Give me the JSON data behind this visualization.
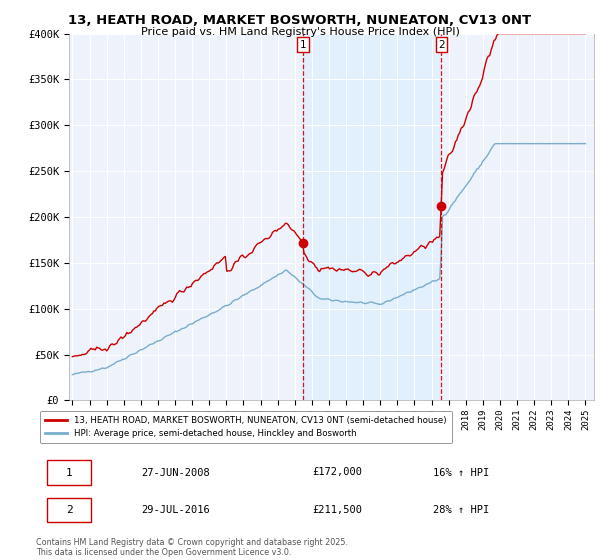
{
  "title": "13, HEATH ROAD, MARKET BOSWORTH, NUNEATON, CV13 0NT",
  "subtitle": "Price paid vs. HM Land Registry's House Price Index (HPI)",
  "ylabel_ticks": [
    "£0",
    "£50K",
    "£100K",
    "£150K",
    "£200K",
    "£250K",
    "£300K",
    "£350K",
    "£400K"
  ],
  "ytick_values": [
    0,
    50000,
    100000,
    150000,
    200000,
    250000,
    300000,
    350000,
    400000
  ],
  "ylim": [
    0,
    400000
  ],
  "red_color": "#cc0000",
  "blue_color": "#7aadcc",
  "shade_color": "#ddeeff",
  "vline_color": "#cc0000",
  "marker1_x": 2008.49,
  "marker2_x": 2016.58,
  "marker1_price": 172000,
  "marker2_price": 211500,
  "legend_label_red": "13, HEATH ROAD, MARKET BOSWORTH, NUNEATON, CV13 0NT (semi-detached house)",
  "legend_label_blue": "HPI: Average price, semi-detached house, Hinckley and Bosworth",
  "table_row1": [
    "1",
    "27-JUN-2008",
    "£172,000",
    "16% ↑ HPI"
  ],
  "table_row2": [
    "2",
    "29-JUL-2016",
    "£211,500",
    "28% ↑ HPI"
  ],
  "footer": "Contains HM Land Registry data © Crown copyright and database right 2025.\nThis data is licensed under the Open Government Licence v3.0.",
  "background_color": "#ffffff",
  "plot_bg_color": "#eef2fa"
}
